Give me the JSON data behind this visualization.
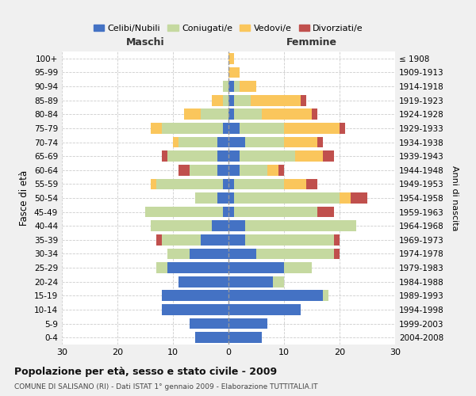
{
  "age_groups_bottom_to_top": [
    "0-4",
    "5-9",
    "10-14",
    "15-19",
    "20-24",
    "25-29",
    "30-34",
    "35-39",
    "40-44",
    "45-49",
    "50-54",
    "55-59",
    "60-64",
    "65-69",
    "70-74",
    "75-79",
    "80-84",
    "85-89",
    "90-94",
    "95-99",
    "100+"
  ],
  "birth_years_bottom_to_top": [
    "2004-2008",
    "1999-2003",
    "1994-1998",
    "1989-1993",
    "1984-1988",
    "1979-1983",
    "1974-1978",
    "1969-1973",
    "1964-1968",
    "1959-1963",
    "1954-1958",
    "1949-1953",
    "1944-1948",
    "1939-1943",
    "1934-1938",
    "1929-1933",
    "1924-1928",
    "1919-1923",
    "1914-1918",
    "1909-1913",
    "≤ 1908"
  ],
  "maschi": {
    "celibi": [
      6,
      7,
      12,
      12,
      9,
      11,
      7,
      5,
      3,
      1,
      2,
      1,
      2,
      2,
      2,
      1,
      0,
      0,
      0,
      0,
      0
    ],
    "coniugati": [
      0,
      0,
      0,
      0,
      0,
      2,
      4,
      7,
      11,
      14,
      4,
      12,
      5,
      9,
      7,
      11,
      5,
      1,
      1,
      0,
      0
    ],
    "vedovi": [
      0,
      0,
      0,
      0,
      0,
      0,
      0,
      0,
      0,
      0,
      0,
      1,
      0,
      0,
      1,
      2,
      3,
      2,
      0,
      0,
      0
    ],
    "divorziati": [
      0,
      0,
      0,
      0,
      0,
      0,
      0,
      1,
      0,
      0,
      0,
      0,
      2,
      1,
      0,
      0,
      0,
      0,
      0,
      0,
      0
    ]
  },
  "femmine": {
    "nubili": [
      6,
      7,
      13,
      17,
      8,
      10,
      5,
      3,
      3,
      1,
      1,
      1,
      2,
      2,
      3,
      2,
      1,
      1,
      1,
      0,
      0
    ],
    "coniugate": [
      0,
      0,
      0,
      1,
      2,
      5,
      14,
      16,
      20,
      15,
      19,
      9,
      5,
      10,
      7,
      8,
      5,
      3,
      1,
      0,
      0
    ],
    "vedove": [
      0,
      0,
      0,
      0,
      0,
      0,
      0,
      0,
      0,
      0,
      2,
      4,
      2,
      5,
      6,
      10,
      9,
      9,
      3,
      2,
      1
    ],
    "divorziate": [
      0,
      0,
      0,
      0,
      0,
      0,
      1,
      1,
      0,
      3,
      3,
      2,
      1,
      2,
      1,
      1,
      1,
      1,
      0,
      0,
      0
    ]
  },
  "colors": {
    "celibi": "#4472C4",
    "coniugati": "#C5D9A0",
    "vedovi": "#FAC65C",
    "divorziati": "#C0504D"
  },
  "xlim": 30,
  "title": "Popolazione per età, sesso e stato civile - 2009",
  "subtitle": "COMUNE DI SALISANO (RI) - Dati ISTAT 1° gennaio 2009 - Elaborazione TUTTITALIA.IT",
  "ylabel_left": "Fasce di età",
  "ylabel_right": "Anni di nascita",
  "xlabel_maschi": "Maschi",
  "xlabel_femmine": "Femmine",
  "legend_labels": [
    "Celibi/Nubili",
    "Coniugati/e",
    "Vedovi/e",
    "Divorziati/e"
  ],
  "bg_color": "#f0f0f0",
  "plot_bg": "#ffffff"
}
